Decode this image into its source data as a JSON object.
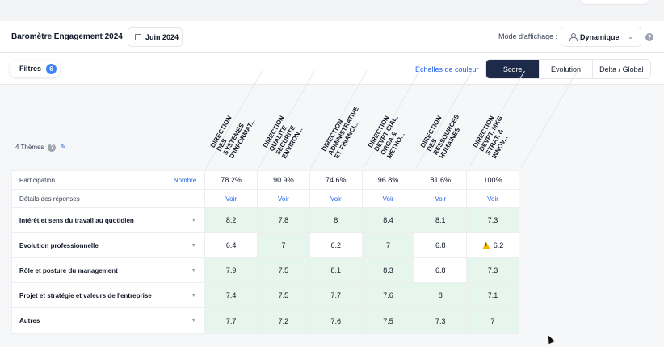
{
  "header": {
    "title": "Baromètre Engagement 2024",
    "date_label": "Juin 2024",
    "mode_label": "Mode d'affichage :",
    "mode_value": "Dynamique",
    "help": "?"
  },
  "toolbar": {
    "filters_label": "Filtres",
    "filters_count": "6",
    "color_scale_label": "Echelles de couleur",
    "view_tabs": [
      "Score",
      "Evolution",
      "Delta / Global"
    ],
    "active_tab": "Score"
  },
  "columns": [
    "DIRECTION DES SYSTEMES D'INFORMAT...",
    "DIRECTION QUALITE SECURITE ENVIRON...",
    "DIRECTION ADMINISTRATIVE ET FINANCI...",
    "DIRECTION DEVPT CIAL, ORGA & METHO...",
    "DIRECTION DES RESSOURCES HUMAINES",
    "DIRECTION DEVPT, MKG STRAT. & INNOV..."
  ],
  "themes": {
    "label": "4 Thèmes",
    "help": "?"
  },
  "participation": {
    "label": "Participation",
    "toggle_label": "Nombre",
    "values": [
      "78.2%",
      "90.9%",
      "74.6%",
      "96.8%",
      "81.6%",
      "100%"
    ]
  },
  "details": {
    "label": "Détails des réponses",
    "link_label": "Voir"
  },
  "rows": [
    {
      "label": "Intérêt et sens du travail au quotidien",
      "values": [
        "8.2",
        "7.8",
        "8",
        "8.4",
        "8.1",
        "7.3"
      ],
      "tones": [
        "green",
        "green",
        "green",
        "green",
        "green",
        "green"
      ]
    },
    {
      "label": "Evolution professionnelle",
      "values": [
        "6.4",
        "7",
        "6.2",
        "7",
        "6.8",
        "6.2"
      ],
      "tones": [
        "white",
        "green",
        "white",
        "green",
        "white",
        "white"
      ],
      "warning_index": 5
    },
    {
      "label": "Rôle et posture du management",
      "values": [
        "7.9",
        "7.5",
        "8.1",
        "8.3",
        "6.8",
        "7.3"
      ],
      "tones": [
        "green",
        "green",
        "green",
        "green",
        "white",
        "green"
      ]
    },
    {
      "label": "Projet et stratégie et valeurs de l'entreprise",
      "values": [
        "7.4",
        "7.5",
        "7.7",
        "7.6",
        "8",
        "7.1"
      ],
      "tones": [
        "green",
        "green",
        "green",
        "green",
        "green",
        "green"
      ]
    },
    {
      "label": "Autres",
      "values": [
        "7.7",
        "7.2",
        "7.6",
        "7.5",
        "7.3",
        "7"
      ],
      "tones": [
        "green",
        "green",
        "green",
        "green",
        "green",
        "green"
      ]
    }
  ],
  "colors": {
    "score_green": "#e7f6ec",
    "accent_blue": "#2563eb",
    "active_tab_bg": "#1e2a4a",
    "warning": "#f2b600"
  }
}
